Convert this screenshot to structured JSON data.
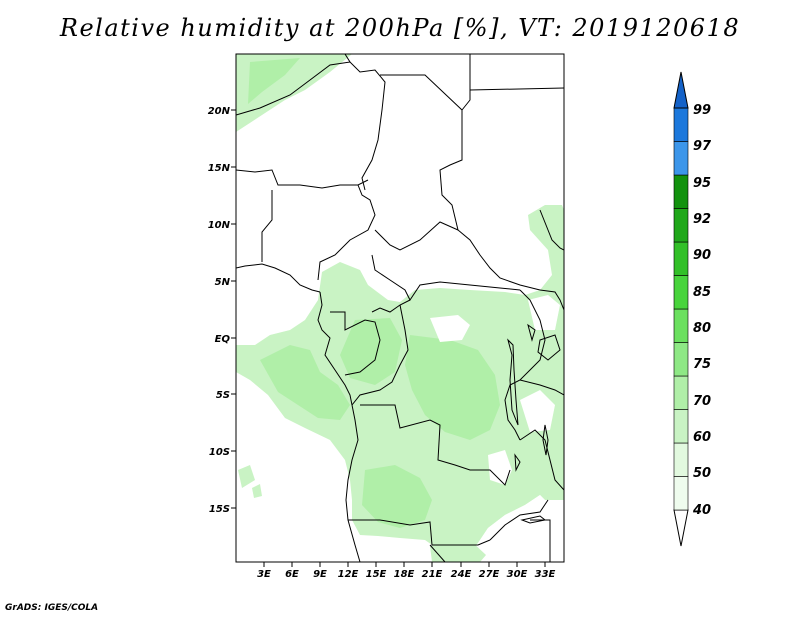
{
  "title": "Relative humidity at 200hPa [%], VT: 2019120618",
  "credit": "GrADS: IGES/COLA",
  "map": {
    "lat_labels": [
      "20N",
      "15N",
      "10N",
      "5N",
      "EQ",
      "5S",
      "10S",
      "15S"
    ],
    "lon_labels": [
      "3E",
      "6E",
      "9E",
      "12E",
      "15E",
      "18E",
      "21E",
      "24E",
      "27E",
      "30E",
      "33E"
    ],
    "lon_range": [
      0,
      35
    ],
    "lat_range": [
      -19,
      24.5
    ]
  },
  "colorbar": {
    "labels": [
      "40",
      "50",
      "60",
      "70",
      "75",
      "80",
      "85",
      "90",
      "92",
      "95",
      "97",
      "99"
    ],
    "colors": [
      "#ffffff",
      "#effcee",
      "#e2f9df",
      "#c9f3c4",
      "#b0efa8",
      "#8ee885",
      "#6be05f",
      "#48d43c",
      "#32c028",
      "#20a81a",
      "#12920e",
      "#3c96ea",
      "#1c78dc",
      "#1462c8"
    ]
  }
}
